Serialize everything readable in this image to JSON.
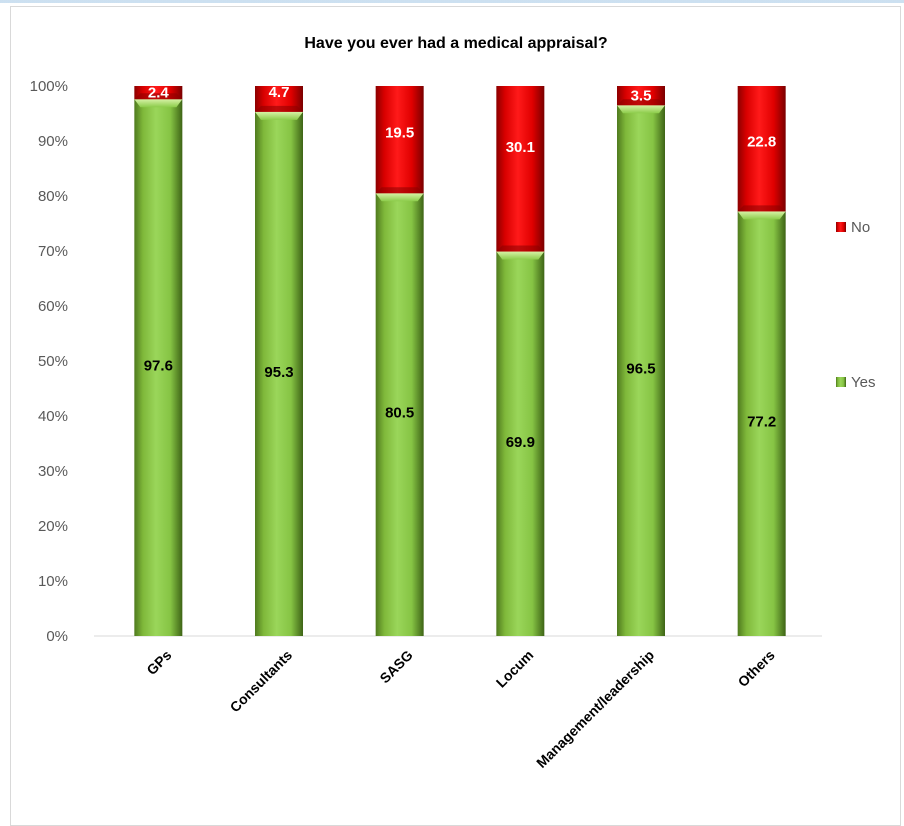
{
  "chart_data": {
    "type": "bar",
    "stacked": true,
    "title": "Have you ever had a medical appraisal?",
    "xlabel": "",
    "ylabel": "",
    "ylim": [
      0,
      100
    ],
    "yticks": [
      "0%",
      "10%",
      "20%",
      "30%",
      "40%",
      "50%",
      "60%",
      "70%",
      "80%",
      "90%",
      "100%"
    ],
    "categories": [
      "GPs",
      "Consultants",
      "SASG",
      "Locum",
      "Management/leadership",
      "Others"
    ],
    "series": [
      {
        "name": "Yes",
        "color": "#92d050",
        "values": [
          97.6,
          95.3,
          80.5,
          69.9,
          96.5,
          77.2
        ],
        "labels": [
          "97.6",
          "95.3",
          "80.5",
          "69.9",
          "96.5",
          "77.2"
        ]
      },
      {
        "name": "No",
        "color": "#ff0000",
        "values": [
          2.4,
          4.7,
          19.5,
          30.1,
          3.5,
          22.8
        ],
        "labels": [
          "2.4",
          "4.7",
          "19.5",
          "30.1",
          "3.5",
          "22.8"
        ]
      }
    ],
    "legend_position": "right",
    "grid": false
  }
}
